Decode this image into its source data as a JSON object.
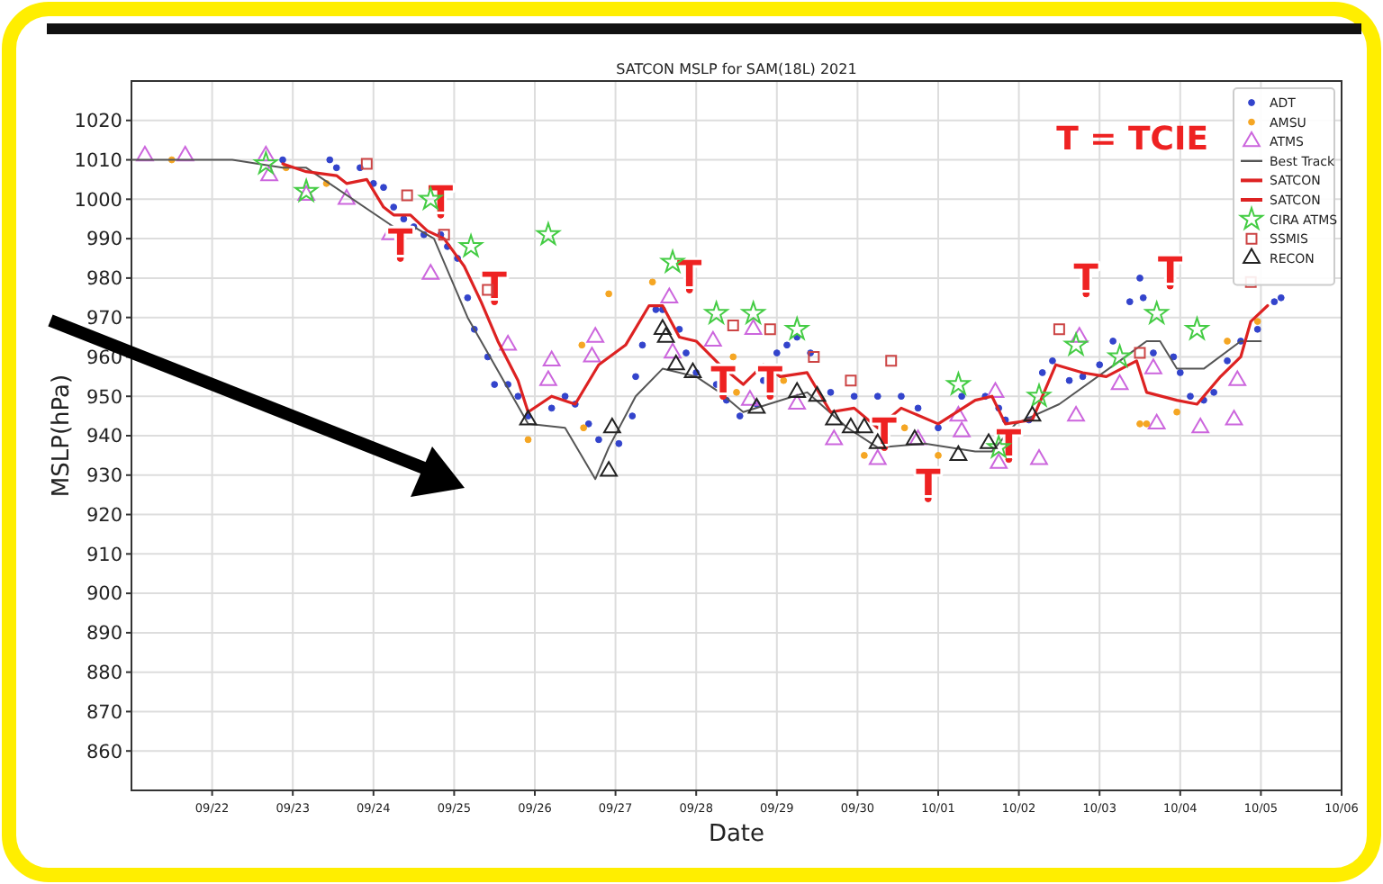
{
  "chart_data": {
    "type": "scatter",
    "title": "SATCON MSLP for SAM(18L) 2021",
    "xlabel": "Date",
    "ylabel": "MSLP(hPa)",
    "xlim": [
      "2021-09-21",
      "2021-10-06"
    ],
    "xticks": [
      {
        "value": "2021-09-22",
        "label": "09/22"
      },
      {
        "value": "2021-09-23",
        "label": "09/23"
      },
      {
        "value": "2021-09-24",
        "label": "09/24"
      },
      {
        "value": "2021-09-25",
        "label": "09/25"
      },
      {
        "value": "2021-09-26",
        "label": "09/26"
      },
      {
        "value": "2021-09-27",
        "label": "09/27"
      },
      {
        "value": "2021-09-28",
        "label": "09/28"
      },
      {
        "value": "2021-09-29",
        "label": "09/29"
      },
      {
        "value": "2021-09-30",
        "label": "09/30"
      },
      {
        "value": "2021-10-01",
        "label": "10/01"
      },
      {
        "value": "2021-10-02",
        "label": "10/02"
      },
      {
        "value": "2021-10-03",
        "label": "10/03"
      },
      {
        "value": "2021-10-04",
        "label": "10/04"
      },
      {
        "value": "2021-10-05",
        "label": "10/05"
      },
      {
        "value": "2021-10-06",
        "label": "10/06"
      }
    ],
    "ylim": [
      850,
      1030
    ],
    "yticks": [
      860,
      870,
      880,
      890,
      900,
      910,
      920,
      930,
      940,
      950,
      960,
      970,
      980,
      990,
      1000,
      1010,
      1020
    ],
    "grid": true,
    "legend": "top right",
    "series": [
      {
        "name": "ADT",
        "marker": "circle",
        "color": "#3344cc",
        "x": [
          "2021-09-22T21:00",
          "2021-09-23T11:00",
          "2021-09-23T13:00",
          "2021-09-23T20:00",
          "2021-09-24T00:00",
          "2021-09-24T03:00",
          "2021-09-24T06:00",
          "2021-09-24T09:00",
          "2021-09-24T12:00",
          "2021-09-24T15:00",
          "2021-09-24T20:00",
          "2021-09-24T22:00",
          "2021-09-25T01:00",
          "2021-09-25T04:00",
          "2021-09-25T06:00",
          "2021-09-25T10:00",
          "2021-09-25T12:00",
          "2021-09-25T16:00",
          "2021-09-25T19:00",
          "2021-09-25T22:00",
          "2021-09-26T05:00",
          "2021-09-26T09:00",
          "2021-09-26T12:00",
          "2021-09-26T16:00",
          "2021-09-26T19:00",
          "2021-09-27T01:00",
          "2021-09-27T05:00",
          "2021-09-27T06:00",
          "2021-09-27T08:00",
          "2021-09-27T12:00",
          "2021-09-27T14:00",
          "2021-09-27T19:00",
          "2021-09-27T21:00",
          "2021-09-28T00:00",
          "2021-09-28T06:00",
          "2021-09-28T09:00",
          "2021-09-28T13:00",
          "2021-09-28T18:00",
          "2021-09-28T20:00",
          "2021-09-29T00:00",
          "2021-09-29T03:00",
          "2021-09-29T06:00",
          "2021-09-29T10:00",
          "2021-09-29T16:00",
          "2021-09-29T23:00",
          "2021-09-30T06:00",
          "2021-09-30T13:00",
          "2021-09-30T18:00",
          "2021-10-01T00:00",
          "2021-10-01T07:00",
          "2021-10-01T14:00",
          "2021-10-01T18:00",
          "2021-10-01T20:00",
          "2021-10-02T03:00",
          "2021-10-02T07:00",
          "2021-10-02T10:00",
          "2021-10-02T15:00",
          "2021-10-02T19:00",
          "2021-10-03T00:00",
          "2021-10-03T04:00",
          "2021-10-03T09:00",
          "2021-10-03T12:00",
          "2021-10-03T13:00",
          "2021-10-03T16:00",
          "2021-10-03T22:00",
          "2021-10-04T00:00",
          "2021-10-04T03:00",
          "2021-10-04T07:00",
          "2021-10-04T10:00",
          "2021-10-04T14:00",
          "2021-10-04T18:00",
          "2021-10-04T23:00",
          "2021-10-05T04:00",
          "2021-10-05T06:00"
        ],
        "values": [
          1010,
          1010,
          1008,
          1008,
          1004,
          1003,
          998,
          995,
          993,
          991,
          991,
          988,
          985,
          975,
          967,
          960,
          953,
          953,
          950,
          945,
          947,
          950,
          948,
          943,
          939,
          938,
          945,
          955,
          963,
          972,
          972,
          967,
          961,
          956,
          953,
          949,
          945,
          948,
          954,
          961,
          963,
          965,
          961,
          951,
          950,
          950,
          950,
          947,
          942,
          950,
          950,
          947,
          944,
          944,
          956,
          959,
          954,
          955,
          958,
          964,
          974,
          980,
          975,
          961,
          960,
          956,
          950,
          949,
          951,
          959,
          964,
          967,
          974,
          975
        ]
      },
      {
        "name": "AMSU",
        "marker": "circle",
        "color": "#f5a623",
        "x": [
          "2021-09-21T12:00",
          "2021-09-22T22:00",
          "2021-09-23T10:00",
          "2021-09-25T22:00",
          "2021-09-26T14:00",
          "2021-09-26T14:30",
          "2021-09-26T22:00",
          "2021-09-27T11:00",
          "2021-09-28T11:00",
          "2021-09-28T12:00",
          "2021-09-29T02:00",
          "2021-09-30T02:00",
          "2021-09-30T14:00",
          "2021-10-01T00:00",
          "2021-10-03T12:00",
          "2021-10-03T14:00",
          "2021-10-03T23:00",
          "2021-10-04T14:00",
          "2021-10-04T23:00"
        ],
        "values": [
          1010,
          1008,
          1004,
          939,
          963,
          942,
          976,
          979,
          960,
          951,
          954,
          935,
          942,
          935,
          943,
          943,
          946,
          964,
          969
        ]
      },
      {
        "name": "ATMS",
        "marker": "triangle",
        "color": "#cc66dd",
        "x": [
          "2021-09-21T04:00",
          "2021-09-21T16:00",
          "2021-09-22T16:00",
          "2021-09-22T17:00",
          "2021-09-23T04:00",
          "2021-09-23T16:00",
          "2021-09-24T05:00",
          "2021-09-24T17:00",
          "2021-09-25T16:00",
          "2021-09-26T05:00",
          "2021-09-26T04:00",
          "2021-09-26T18:00",
          "2021-09-26T17:00",
          "2021-09-27T16:00",
          "2021-09-27T17:00",
          "2021-09-28T05:00",
          "2021-09-28T17:00",
          "2021-09-28T16:00",
          "2021-09-29T06:00",
          "2021-09-29T17:00",
          "2021-09-30T06:00",
          "2021-09-30T18:00",
          "2021-10-01T06:00",
          "2021-10-01T07:00",
          "2021-10-01T17:00",
          "2021-10-01T18:00",
          "2021-10-02T06:00",
          "2021-10-02T17:00",
          "2021-10-02T18:00",
          "2021-10-03T06:00",
          "2021-10-03T16:00",
          "2021-10-03T17:00",
          "2021-10-04T06:00",
          "2021-10-04T16:00",
          "2021-10-04T17:00"
        ],
        "values": [
          1011,
          1011,
          1011,
          1006,
          1001,
          1000,
          991,
          981,
          963,
          959,
          954,
          965,
          960,
          975,
          961,
          964,
          967,
          949,
          948,
          939,
          934,
          939,
          945,
          941,
          951,
          933,
          934,
          945,
          965,
          953,
          957,
          943,
          942,
          944,
          954
        ]
      },
      {
        "name": "Best Track",
        "type": "line",
        "line_style": "solid",
        "color": "#555555",
        "x": [
          "2021-09-21T00:00",
          "2021-09-22T06:00",
          "2021-09-22T21:00",
          "2021-09-23T04:00",
          "2021-09-24T06:00",
          "2021-09-24T12:00",
          "2021-09-24T18:00",
          "2021-09-25T04:00",
          "2021-09-25T14:00",
          "2021-09-25T22:00",
          "2021-09-26T09:00",
          "2021-09-26T18:00",
          "2021-09-26T22:00",
          "2021-09-27T06:00",
          "2021-09-27T14:00",
          "2021-09-28T00:00",
          "2021-09-28T07:00",
          "2021-09-28T14:00",
          "2021-09-29T05:00",
          "2021-09-29T09:00",
          "2021-09-29T21:00",
          "2021-09-30T06:00",
          "2021-09-30T20:00",
          "2021-10-01T11:00",
          "2021-10-01T16:00",
          "2021-10-01T23:00",
          "2021-10-02T12:00",
          "2021-10-03T06:00",
          "2021-10-03T14:00",
          "2021-10-03T18:00",
          "2021-10-03T23:00",
          "2021-10-04T07:00",
          "2021-10-04T18:00",
          "2021-10-05T00:00"
        ],
        "values": [
          1010,
          1010,
          1008,
          1008,
          993,
          993,
          990,
          970,
          955,
          943,
          942,
          929,
          937,
          950,
          957,
          955,
          951,
          946,
          950,
          951,
          942,
          937,
          938,
          936,
          936,
          943,
          948,
          959,
          964,
          964,
          957,
          957,
          964,
          964
        ]
      },
      {
        "name": "SATCON",
        "type": "line",
        "line_style": "solid",
        "color": "#dd2222",
        "x": [
          "2021-09-22T21:00",
          "2021-09-23T04:00",
          "2021-09-23T13:00",
          "2021-09-23T16:00",
          "2021-09-23T22:00",
          "2021-09-24T03:00",
          "2021-09-24T06:00",
          "2021-09-24T11:00",
          "2021-09-24T16:00",
          "2021-09-24T21:00",
          "2021-09-25T03:00",
          "2021-09-25T08:00",
          "2021-09-25T13:00",
          "2021-09-25T19:00",
          "2021-09-25T22:00",
          "2021-09-26T05:00",
          "2021-09-26T12:00",
          "2021-09-26T19:00",
          "2021-09-27T03:00",
          "2021-09-27T10:00",
          "2021-09-27T14:00",
          "2021-09-27T19:00",
          "2021-09-28T00:00",
          "2021-09-28T07:00",
          "2021-09-28T14:00",
          "2021-09-28T20:00",
          "2021-09-29T01:00",
          "2021-09-29T09:00",
          "2021-09-29T16:00",
          "2021-09-29T23:00",
          "2021-09-30T06:00",
          "2021-09-30T13:00",
          "2021-10-01T00:00",
          "2021-10-01T11:00",
          "2021-10-01T16:00",
          "2021-10-01T20:00",
          "2021-10-02T04:00",
          "2021-10-02T11:00",
          "2021-10-02T19:00",
          "2021-10-03T02:00",
          "2021-10-03T11:00",
          "2021-10-03T14:00",
          "2021-10-03T23:00",
          "2021-10-04T05:00",
          "2021-10-04T12:00",
          "2021-10-04T18:00",
          "2021-10-04T21:00",
          "2021-10-05T02:00"
        ],
        "values": [
          1009,
          1007,
          1006,
          1004,
          1005,
          998,
          996,
          996,
          992,
          990,
          983,
          974,
          964,
          954,
          946,
          950,
          948,
          958,
          963,
          973,
          973,
          965,
          964,
          958,
          953,
          958,
          955,
          956,
          946,
          947,
          942,
          947,
          943,
          949,
          950,
          943,
          944,
          958,
          956,
          955,
          959,
          951,
          949,
          948,
          955,
          960,
          969,
          973
        ]
      },
      {
        "name": "SATCON",
        "type": "line",
        "line_style": "solid",
        "color": "#dd2222"
      },
      {
        "type": "scatter",
        "marker": "circle",
        "color": "#ee2222",
        "value_labels": [
          "T",
          "T",
          "T",
          "T",
          "T",
          "T",
          "T",
          "T",
          "T",
          "T",
          "T"
        ],
        "x": [
          "2021-09-24T08:00",
          "2021-09-24T20:00",
          "2021-09-25T12:00",
          "2021-09-27T22:00",
          "2021-09-28T08:00",
          "2021-09-28T22:00",
          "2021-09-30T08:00",
          "2021-09-30T21:00",
          "2021-10-01T21:00",
          "2021-10-02T20:00",
          "2021-10-03T21:00"
        ],
        "values": [
          985,
          996,
          974,
          977,
          950,
          950,
          937,
          924,
          934,
          976,
          978
        ]
      },
      {
        "name": "CIRA ATMS",
        "marker": "star",
        "color": "#44cc44",
        "x": [
          "2021-09-22T16:00",
          "2021-09-23T04:00",
          "2021-09-24T17:00",
          "2021-09-25T05:00",
          "2021-09-26T04:00",
          "2021-09-27T17:00",
          "2021-09-28T06:00",
          "2021-09-28T17:00",
          "2021-09-29T06:00",
          "2021-10-01T06:00",
          "2021-10-01T18:00",
          "2021-10-02T06:00",
          "2021-10-02T17:00",
          "2021-10-03T06:00",
          "2021-10-03T17:00",
          "2021-10-04T05:00"
        ],
        "values": [
          1009,
          1002,
          1000,
          988,
          991,
          984,
          971,
          971,
          967,
          953,
          937,
          950,
          963,
          960,
          971,
          967
        ]
      },
      {
        "name": "SSMIS",
        "marker": "square",
        "color": "#cc4444",
        "x": [
          "2021-09-23T22:00",
          "2021-09-24T10:00",
          "2021-09-24T21:00",
          "2021-09-25T10:00",
          "2021-09-28T11:00",
          "2021-09-28T22:00",
          "2021-09-29T11:00",
          "2021-09-29T22:00",
          "2021-09-30T10:00",
          "2021-10-02T12:00",
          "2021-10-03T12:00",
          "2021-10-04T21:00"
        ],
        "values": [
          1009,
          1001,
          991,
          977,
          968,
          967,
          960,
          954,
          959,
          967,
          961,
          979
        ]
      },
      {
        "name": "RECON",
        "marker": "triangle",
        "color": "#222222",
        "x": [
          "2021-09-25T22:00",
          "2021-09-26T23:00",
          "2021-09-26T22:00",
          "2021-09-27T14:00",
          "2021-09-27T15:00",
          "2021-09-27T18:00",
          "2021-09-27T23:00",
          "2021-09-28T18:00",
          "2021-09-29T06:00",
          "2021-09-29T12:00",
          "2021-09-29T17:00",
          "2021-09-29T22:00",
          "2021-09-30T02:00",
          "2021-09-30T06:00",
          "2021-09-30T17:00",
          "2021-10-01T06:00",
          "2021-10-01T15:00",
          "2021-10-02T04:00"
        ],
        "values": [
          944,
          942,
          931,
          967,
          965,
          958,
          956,
          947,
          951,
          950,
          944,
          942,
          942,
          938,
          939,
          935,
          938,
          945
        ]
      }
    ],
    "annotations": [
      "T = TCIE"
    ]
  }
}
